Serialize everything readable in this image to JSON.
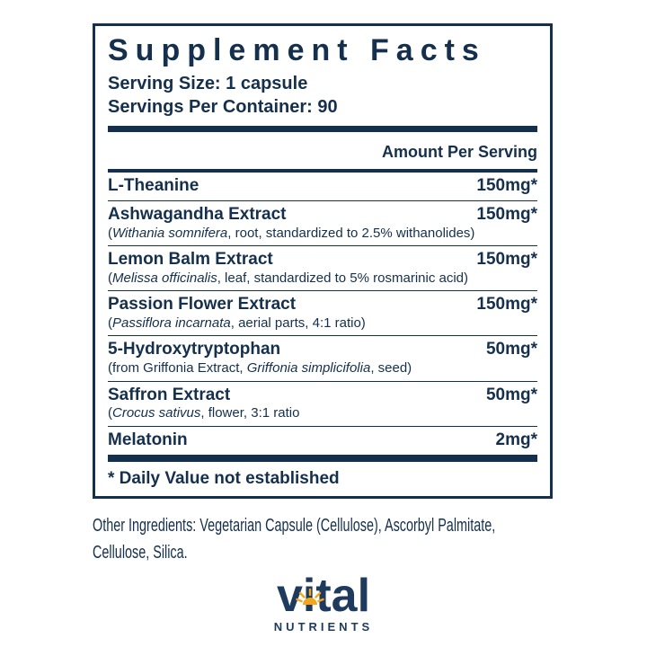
{
  "colors": {
    "navy": "#15304c",
    "logo-navy": "#1e3a5c",
    "gold": "#f2a71b",
    "paper": "#ffffff"
  },
  "panel": {
    "title": "Supplement Facts",
    "serving_size": "Serving Size: 1 capsule",
    "servings_per_container": "Servings Per Container: 90",
    "amount_header": "Amount Per Serving",
    "rows": [
      {
        "name": "L-Theanine",
        "amount": "150mg*",
        "detail": []
      },
      {
        "name": "Ashwagandha Extract",
        "amount": "150mg*",
        "detail": [
          {
            "t": "(",
            "i": false
          },
          {
            "t": "Withania somnifera",
            "i": true
          },
          {
            "t": ", root, standardized to 2.5% withanolides)",
            "i": false
          }
        ]
      },
      {
        "name": "Lemon Balm Extract",
        "amount": "150mg*",
        "detail": [
          {
            "t": "(",
            "i": false
          },
          {
            "t": "Melissa officinalis",
            "i": true
          },
          {
            "t": ", leaf, standardized to 5% rosmarinic acid)",
            "i": false
          }
        ]
      },
      {
        "name": "Passion Flower Extract",
        "amount": "150mg*",
        "detail": [
          {
            "t": "(",
            "i": false
          },
          {
            "t": "Passiflora incarnata",
            "i": true
          },
          {
            "t": ", aerial parts, 4:1 ratio)",
            "i": false
          }
        ]
      },
      {
        "name": "5-Hydroxytryptophan",
        "amount": "50mg*",
        "detail": [
          {
            "t": "(from Griffonia Extract, ",
            "i": false
          },
          {
            "t": "Griffonia simplicifolia",
            "i": true
          },
          {
            "t": ", seed)",
            "i": false
          }
        ]
      },
      {
        "name": "Saffron Extract",
        "amount": "50mg*",
        "detail": [
          {
            "t": "(",
            "i": false
          },
          {
            "t": "Crocus sativus",
            "i": true
          },
          {
            "t": ", flower, 3:1 ratio",
            "i": false
          }
        ]
      },
      {
        "name": "Melatonin",
        "amount": "2mg*",
        "detail": []
      }
    ],
    "footnote": "* Daily Value not established"
  },
  "other_ingredients": {
    "lines": [
      "Other Ingredients: Vegetarian Capsule (Cellulose), Ascorbyl Palmitate,",
      "Cellulose, Silica."
    ]
  },
  "logo": {
    "brand": "vital",
    "sub": "NUTRIENTS",
    "icon": "sun-icon"
  }
}
